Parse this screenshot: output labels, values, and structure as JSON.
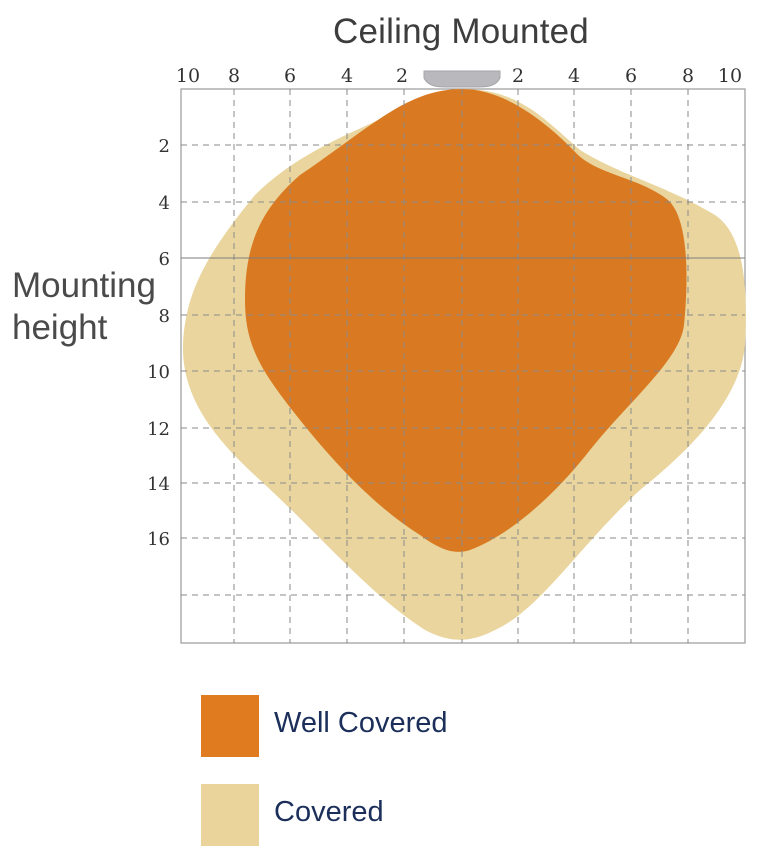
{
  "diagram": {
    "title": "Ceiling Mounted",
    "side_label_line1": "Mounting",
    "side_label_line2": "height",
    "top_axis_labels": [
      "10",
      "8",
      "6",
      "4",
      "2",
      "2",
      "4",
      "6",
      "8",
      "10"
    ],
    "left_axis_labels": [
      "2",
      "4",
      "6",
      "8",
      "10",
      "12",
      "14",
      "16"
    ],
    "colors": {
      "well_covered": "#d97a22",
      "covered": "#e9d59d",
      "sensor": "#b9b9bd",
      "grid": "#8a8a8a",
      "frame": "#9a9a9a"
    },
    "icons": [
      "ceiling-sensor-icon"
    ]
  },
  "legend": {
    "items": [
      {
        "label": "Well Covered",
        "color": "#e07b1f"
      },
      {
        "label": "Covered",
        "color": "#ead49c"
      }
    ]
  }
}
